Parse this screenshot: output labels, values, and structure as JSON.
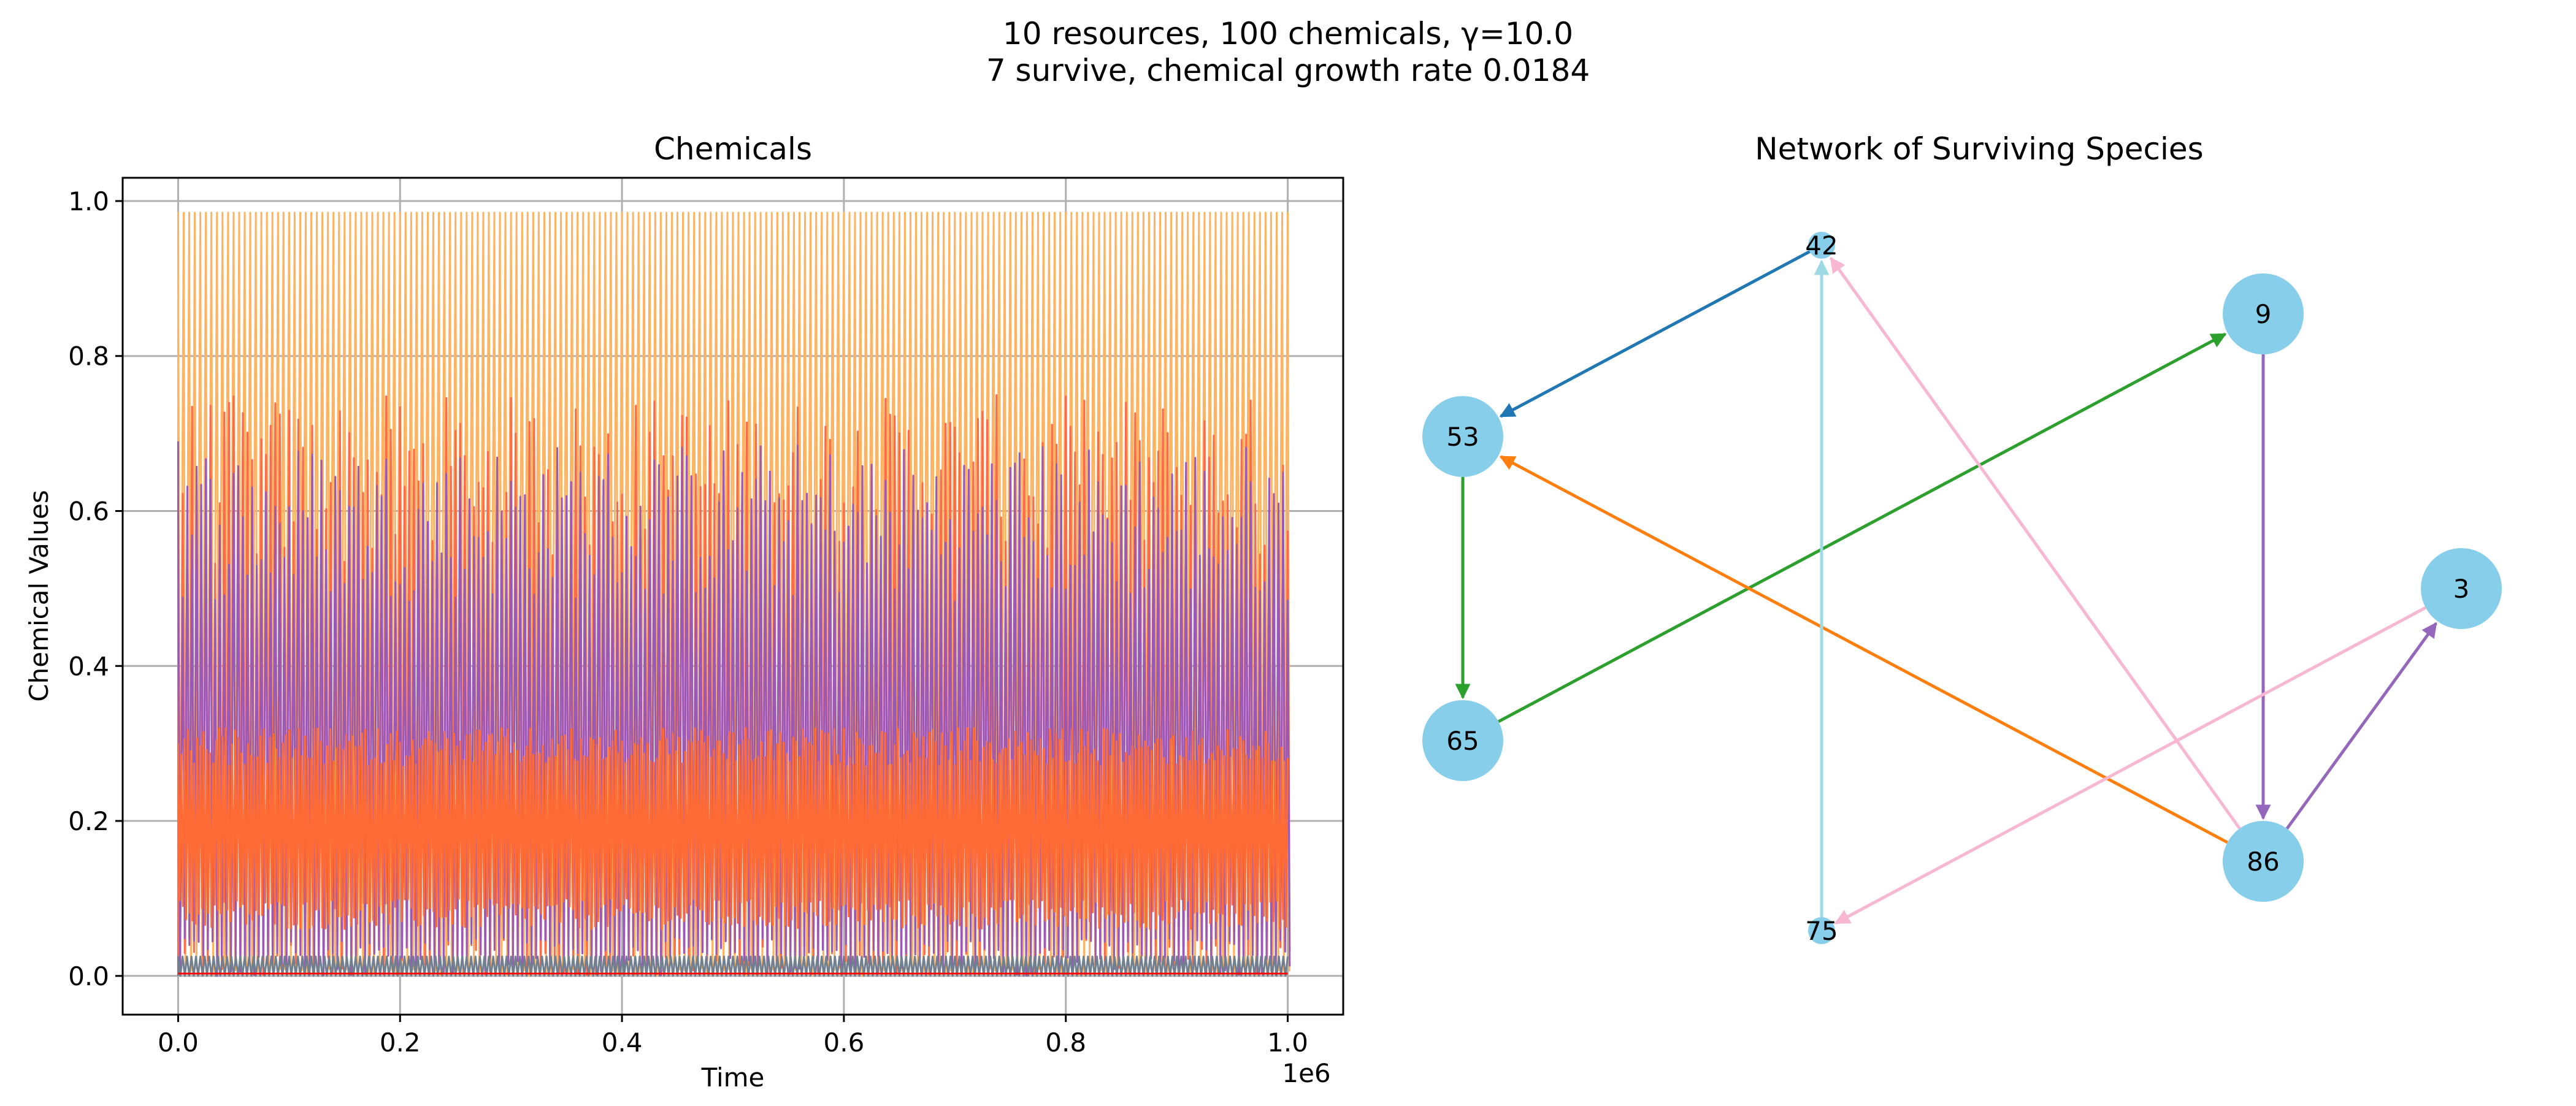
{
  "figure": {
    "title_line1": "10 resources, 100 chemicals, γ=10.0",
    "title_line2": "7 survive, chemical growth rate 0.0184"
  },
  "chart_data": [
    {
      "type": "line",
      "title": "Chemicals",
      "xlabel": "Time",
      "ylabel": "Chemical Values",
      "x_offset_label": "1e6",
      "xlim": [
        -50000,
        1050000
      ],
      "ylim": [
        -0.05,
        1.03
      ],
      "x_ticks": [
        0.0,
        0.2,
        0.4,
        0.6,
        0.8,
        1.0
      ],
      "x_tick_labels": [
        "0.0",
        "0.2",
        "0.4",
        "0.6",
        "0.8",
        "1.0"
      ],
      "y_ticks": [
        0.0,
        0.2,
        0.4,
        0.6,
        0.8,
        1.0
      ],
      "y_tick_labels": [
        "0.0",
        "0.2",
        "0.4",
        "0.6",
        "0.8",
        "1.0"
      ],
      "grid": true,
      "x_range": [
        0,
        1000000
      ],
      "series": [
        {
          "color": "#fdb462",
          "low": 0.0,
          "high": 0.985,
          "start": 0.0,
          "style": "square-oscillation"
        },
        {
          "color": "#fb6a4a",
          "low": 0.0,
          "high": 0.75,
          "start": 0.0,
          "style": "oscillation"
        },
        {
          "color": "#9b59b6",
          "low": 0.0,
          "high": 0.69,
          "start": 0.69,
          "style": "oscillation"
        },
        {
          "color": "#ff6b35",
          "low": 0.06,
          "high": 0.32,
          "start": 0.2,
          "style": "dense-band"
        },
        {
          "color": "#708090",
          "low": 0.0,
          "high": 0.025,
          "start": 0.0,
          "style": "band"
        },
        {
          "color": "#ff0000",
          "low": 0.0,
          "high": 0.003,
          "start": 0.0,
          "style": "flat"
        }
      ]
    },
    {
      "type": "network",
      "title": "Network of Surviving Species",
      "nodes": [
        {
          "id": "42",
          "label": "42",
          "size": "small"
        },
        {
          "id": "9",
          "label": "9",
          "size": "large"
        },
        {
          "id": "53",
          "label": "53",
          "size": "large"
        },
        {
          "id": "3",
          "label": "3",
          "size": "large"
        },
        {
          "id": "65",
          "label": "65",
          "size": "large"
        },
        {
          "id": "86",
          "label": "86",
          "size": "large"
        },
        {
          "id": "75",
          "label": "75",
          "size": "small"
        }
      ],
      "node_color": "#87ceeb",
      "edges": [
        {
          "from": "42",
          "to": "53",
          "color": "#1f77b4"
        },
        {
          "from": "53",
          "to": "65",
          "color": "#2ca02c"
        },
        {
          "from": "65",
          "to": "9",
          "color": "#2ca02c"
        },
        {
          "from": "9",
          "to": "86",
          "color": "#9467bd"
        },
        {
          "from": "86",
          "to": "3",
          "color": "#9467bd"
        },
        {
          "from": "86",
          "to": "53",
          "color": "#ff7f0e"
        },
        {
          "from": "86",
          "to": "42",
          "color": "#f7b6d2"
        },
        {
          "from": "3",
          "to": "75",
          "color": "#f7b6d2"
        },
        {
          "from": "75",
          "to": "42",
          "color": "#9edae5"
        }
      ]
    }
  ]
}
